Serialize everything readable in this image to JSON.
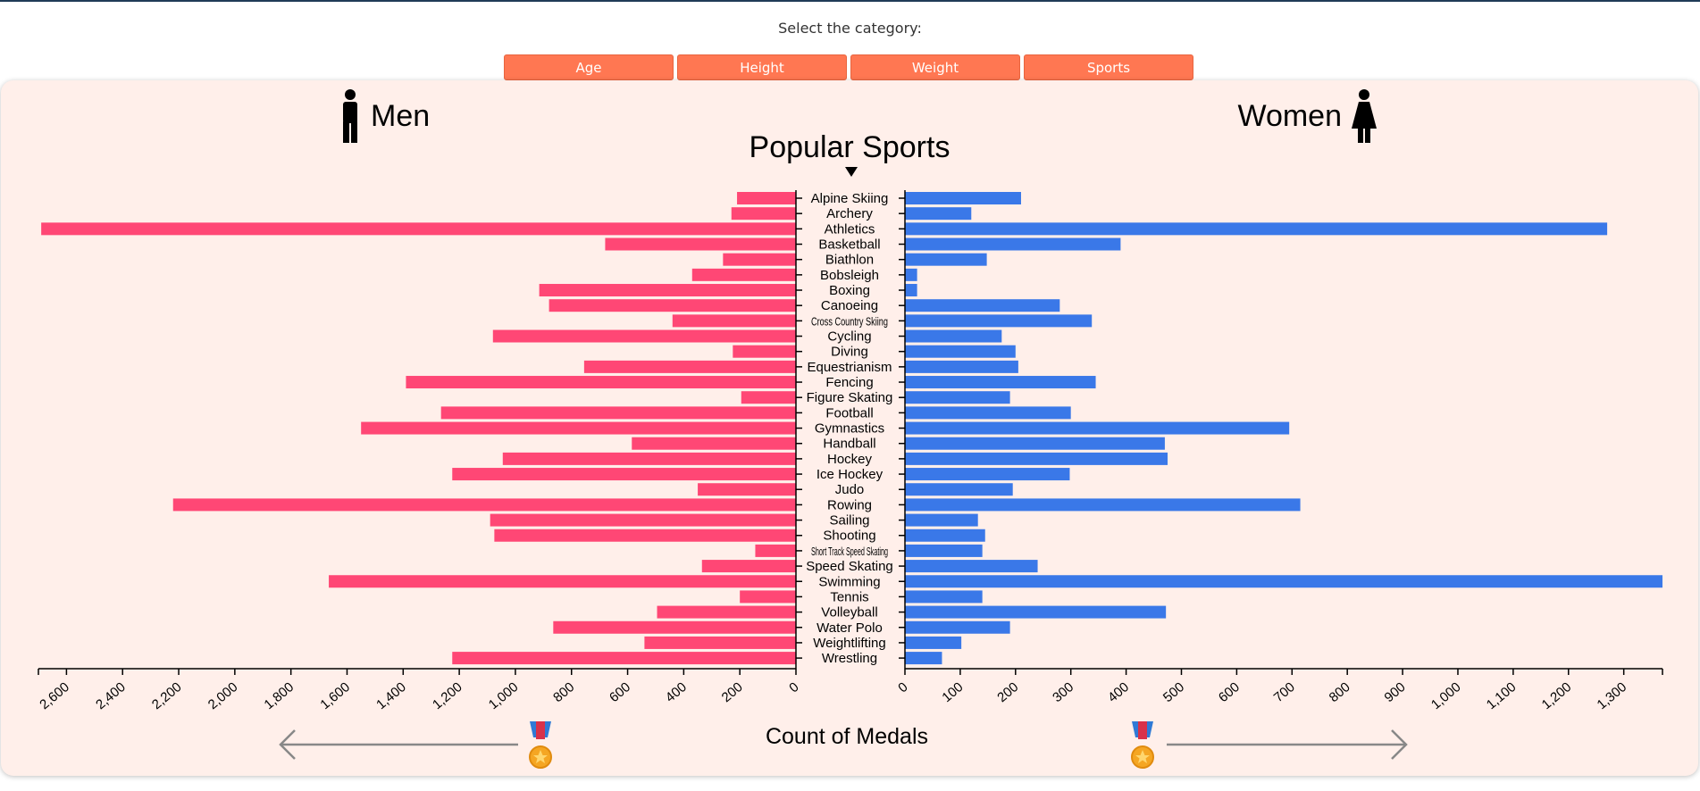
{
  "header": {
    "prompt": "Select the category:"
  },
  "categories_buttons": [
    {
      "label": "Age"
    },
    {
      "label": "Height"
    },
    {
      "label": "Weight"
    },
    {
      "label": "Sports"
    }
  ],
  "labels": {
    "men": "Men",
    "women": "Women",
    "x_axis_title": "Count of Medals",
    "men_icon": "man-icon",
    "women_icon": "woman-icon",
    "medal_icon": "medal-icon",
    "dropdown_icon": "triangle-down-icon"
  },
  "colors": {
    "men": "#ff4775",
    "women": "#3a78e8",
    "button": "#ff7752",
    "panel": "#ffefea"
  },
  "chart_data": {
    "type": "bar",
    "title": "Popular Sports",
    "categories": [
      "Alpine Skiing",
      "Archery",
      "Athletics",
      "Basketball",
      "Biathlon",
      "Bobsleigh",
      "Boxing",
      "Canoeing",
      "Cross Country Skiing",
      "Cycling",
      "Diving",
      "Equestrianism",
      "Fencing",
      "Figure Skating",
      "Football",
      "Gymnastics",
      "Handball",
      "Hockey",
      "Ice Hockey",
      "Judo",
      "Rowing",
      "Sailing",
      "Shooting",
      "Short Track Speed Skating",
      "Speed Skating",
      "Swimming",
      "Tennis",
      "Volleyball",
      "Water Polo",
      "Weightlifting",
      "Wrestling"
    ],
    "series": [
      {
        "name": "Men",
        "values": [
          210,
          230,
          2690,
          680,
          260,
          370,
          915,
          880,
          440,
          1080,
          225,
          755,
          1390,
          195,
          1265,
          1550,
          585,
          1045,
          1225,
          350,
          2220,
          1090,
          1075,
          145,
          335,
          1665,
          200,
          495,
          865,
          540,
          1225
        ]
      },
      {
        "name": "Women",
        "values": [
          210,
          120,
          1270,
          390,
          148,
          22,
          22,
          280,
          338,
          175,
          200,
          205,
          345,
          190,
          300,
          695,
          470,
          475,
          298,
          195,
          715,
          132,
          145,
          140,
          240,
          1370,
          140,
          472,
          190,
          102,
          67
        ]
      }
    ],
    "men_axis": {
      "ticks": [
        0,
        200,
        400,
        600,
        800,
        1000,
        1200,
        1400,
        1600,
        1800,
        2000,
        2200,
        2400,
        2600
      ],
      "tick_labels": [
        "0",
        "200",
        "400",
        "600",
        "800",
        "1,000",
        "1,200",
        "1,400",
        "1,600",
        "1,800",
        "2,000",
        "2,200",
        "2,400",
        "2,600"
      ],
      "range": [
        0,
        2700
      ]
    },
    "women_axis": {
      "ticks": [
        0,
        100,
        200,
        300,
        400,
        500,
        600,
        700,
        800,
        900,
        1000,
        1100,
        1200,
        1300
      ],
      "tick_labels": [
        "0",
        "100",
        "200",
        "300",
        "400",
        "500",
        "600",
        "700",
        "800",
        "900",
        "1,000",
        "1,100",
        "1,200",
        "1,300"
      ],
      "range": [
        0,
        1370
      ]
    },
    "xlabel": "Count of Medals",
    "legend": [
      "Men",
      "Women"
    ]
  }
}
